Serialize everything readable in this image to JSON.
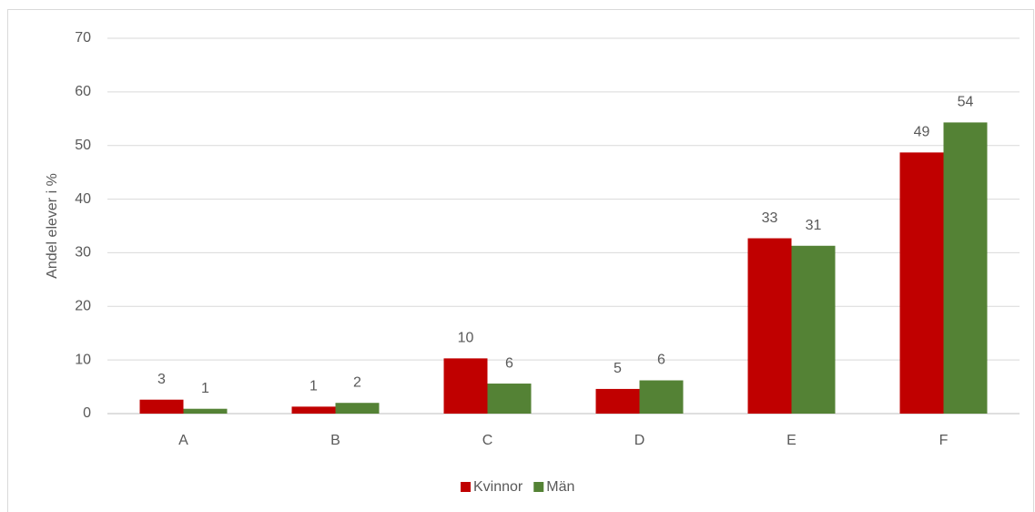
{
  "chart_data": {
    "type": "bar",
    "y_label": "Andel elever i %",
    "categories": [
      "A",
      "B",
      "C",
      "D",
      "E",
      "F"
    ],
    "series": [
      {
        "name": "Kvinnor",
        "color": "#c00000",
        "values": [
          2.6,
          1.3,
          10.3,
          4.6,
          32.7,
          48.7
        ],
        "value_labels": [
          "3",
          "1",
          "10",
          "5",
          "33",
          "49"
        ]
      },
      {
        "name": "Män",
        "color": "#548235",
        "values": [
          0.9,
          2.0,
          5.6,
          6.2,
          31.3,
          54.3
        ],
        "value_labels": [
          "1",
          "2",
          "6",
          "6",
          "31",
          "54"
        ]
      }
    ],
    "ylim": [
      0,
      70
    ],
    "yticks": [
      0,
      10,
      20,
      30,
      40,
      50,
      60,
      70
    ],
    "grid": true,
    "legend": "bottom"
  }
}
